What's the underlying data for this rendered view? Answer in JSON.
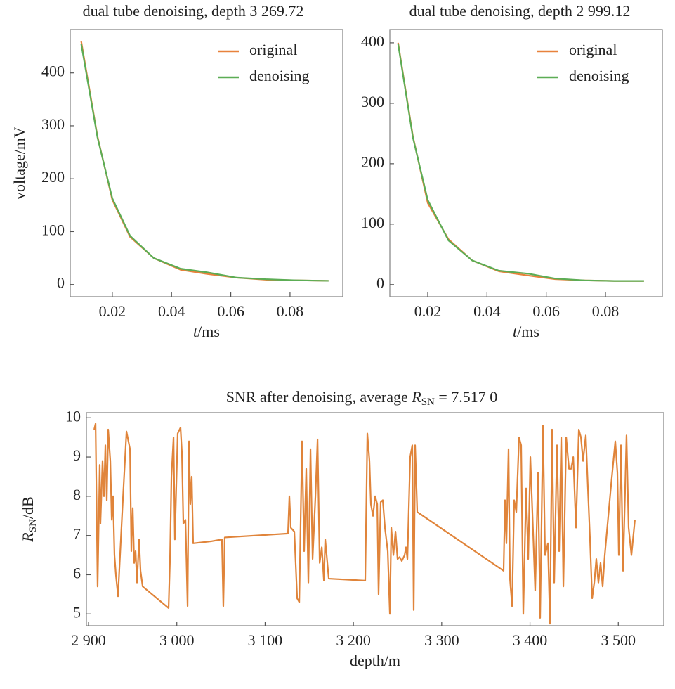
{
  "chart_data": [
    {
      "type": "line",
      "title": "dual tube denoising, depth 3 269.72",
      "xlabel": {
        "symbol": "t",
        "unit": "/ms"
      },
      "ylabel": "voltage/mV",
      "x": [
        0.0095,
        0.015,
        0.02,
        0.026,
        0.034,
        0.043,
        0.052,
        0.062,
        0.072,
        0.082,
        0.093
      ],
      "series": [
        {
          "name": "original",
          "color": "#e8823c",
          "values": [
            460,
            280,
            160,
            90,
            50,
            28,
            20,
            13,
            9,
            8,
            7
          ]
        },
        {
          "name": "denoising",
          "color": "#5cad55",
          "values": [
            455,
            278,
            163,
            92,
            50,
            30,
            23,
            13,
            10,
            8,
            7
          ]
        }
      ],
      "xlim": [
        0.0058,
        0.0978
      ],
      "xticks": [
        0.02,
        0.04,
        0.06,
        0.08
      ],
      "ylim": [
        -23,
        482
      ],
      "yticks": [
        0,
        100,
        200,
        300,
        400
      ],
      "legend": "upper right"
    },
    {
      "type": "line",
      "title": "dual tube denoising, depth 2 999.12",
      "xlabel": {
        "symbol": "t",
        "unit": "/ms"
      },
      "x": [
        0.01,
        0.015,
        0.02,
        0.027,
        0.035,
        0.044,
        0.054,
        0.063,
        0.073,
        0.083,
        0.093
      ],
      "series": [
        {
          "name": "original",
          "color": "#e8823c",
          "values": [
            400,
            245,
            135,
            75,
            40,
            22,
            15,
            9,
            7,
            6,
            6
          ]
        },
        {
          "name": "denoising",
          "color": "#5cad55",
          "values": [
            398,
            243,
            140,
            73,
            40,
            23,
            18,
            10,
            7,
            6,
            6
          ]
        }
      ],
      "xlim": [
        0.0072,
        0.0992
      ],
      "xticks": [
        0.02,
        0.04,
        0.06,
        0.08
      ],
      "ylim": [
        -20,
        422
      ],
      "yticks": [
        0,
        100,
        200,
        300,
        400
      ],
      "legend": "upper right"
    },
    {
      "type": "line",
      "title": {
        "text": "SNR after denoising, average ",
        "symbol": "R",
        "subscript": "SN",
        "unit": " = 7.517 0"
      },
      "xlabel": "depth/m",
      "ylabel": {
        "symbol": "R",
        "subscript": "SN",
        "unit": "/dB"
      },
      "x": [
        2906.4,
        2908,
        2910.3,
        2912.7,
        2913.5,
        2915.9,
        2917.5,
        2919.1,
        2920.7,
        2922.3,
        2924.7,
        2926.3,
        2927.8,
        2929.4,
        2931,
        2933.4,
        2938.2,
        2943,
        2947,
        2948.5,
        2950.1,
        2951.7,
        2953.3,
        2954.9,
        2957.3,
        2958.9,
        2961.3,
        2990.7,
        2992.3,
        2993.9,
        2996.3,
        2997.8,
        3001,
        3004.2,
        3005.8,
        3007.4,
        3009.8,
        3012.2,
        3013.8,
        3015.3,
        3016.9,
        3018.5,
        3038.4,
        3051.1,
        3052.7,
        3054.3,
        3125.9,
        3127.5,
        3129.1,
        3133.1,
        3136.3,
        3138.7,
        3141.8,
        3144.2,
        3146.6,
        3149,
        3151.4,
        3153.8,
        3157,
        3159.4,
        3161.8,
        3164.2,
        3166.6,
        3168.1,
        3172.1,
        3213.4,
        3215.8,
        3218.2,
        3219.8,
        3222.2,
        3224.6,
        3227,
        3228.5,
        3230.9,
        3233.3,
        3235.7,
        3238.9,
        3241.3,
        3242.9,
        3245.3,
        3247.7,
        3250,
        3252.4,
        3254.8,
        3258,
        3259.6,
        3261.2,
        3264.3,
        3266.7,
        3268.3,
        3269.9,
        3272.3,
        3370.1,
        3371.7,
        3373.3,
        3375.7,
        3377.3,
        3379.7,
        3382.1,
        3384.5,
        3387.6,
        3390,
        3392.4,
        3395.6,
        3398,
        3400.4,
        3402.7,
        3405.9,
        3409.1,
        3411.5,
        3414.7,
        3417.1,
        3420.3,
        3422.6,
        3425,
        3427.4,
        3430.6,
        3433,
        3435.4,
        3437.8,
        3441,
        3444.2,
        3446.6,
        3449,
        3452.1,
        3455.3,
        3457.7,
        3460.1,
        3463.2,
        3465.6,
        3468,
        3470.4,
        3472.8,
        3475.1,
        3477.5,
        3479.9,
        3482.3,
        3484.7,
        3491.9,
        3496.6,
        3499,
        3500.6,
        3503,
        3505.4,
        3509.3,
        3511.7,
        3514.9,
        3518.8
      ],
      "series": [
        {
          "color": "#e0843a",
          "values": [
            9.7,
            9.85,
            5.7,
            8.8,
            7.3,
            8.9,
            8.0,
            9.3,
            7.9,
            9.7,
            8.9,
            7.4,
            8.0,
            6.5,
            6.0,
            5.45,
            7.6,
            9.65,
            9.2,
            6.6,
            7.7,
            6.3,
            6.6,
            5.8,
            6.9,
            6.1,
            5.7,
            5.15,
            6.4,
            8.5,
            9.5,
            6.9,
            9.6,
            9.75,
            9.1,
            7.3,
            7.4,
            5.2,
            9.4,
            7.8,
            8.5,
            6.8,
            6.85,
            6.9,
            5.2,
            6.95,
            7.05,
            8.0,
            7.2,
            7.1,
            5.4,
            5.3,
            9.4,
            6.6,
            8.7,
            5.8,
            9.2,
            6.4,
            8.0,
            9.45,
            6.3,
            6.7,
            5.85,
            6.9,
            5.9,
            5.85,
            9.6,
            8.9,
            7.8,
            7.5,
            8.0,
            7.8,
            5.5,
            7.85,
            7.9,
            7.2,
            6.6,
            5.0,
            7.2,
            6.5,
            7.1,
            6.4,
            6.45,
            6.35,
            6.5,
            6.7,
            6.4,
            9.0,
            9.3,
            5.1,
            9.3,
            7.6,
            6.1,
            7.9,
            6.8,
            9.2,
            5.9,
            5.2,
            7.9,
            7.6,
            9.5,
            9.3,
            5.0,
            8.2,
            6.4,
            9.0,
            7.6,
            5.6,
            8.6,
            4.9,
            9.8,
            6.5,
            6.8,
            4.75,
            9.7,
            5.8,
            9.3,
            6.6,
            9.5,
            5.7,
            9.5,
            8.7,
            8.7,
            9.0,
            7.2,
            9.7,
            9.5,
            8.9,
            9.55,
            8.2,
            6.9,
            5.4,
            5.8,
            6.4,
            5.8,
            6.3,
            5.7,
            6.5,
            8.3,
            9.4,
            8.6,
            6.5,
            9.3,
            6.1,
            9.55,
            7.2,
            6.5,
            7.4
          ]
        }
      ],
      "xlim": [
        2897.6,
        3551.5
      ],
      "xticks": [
        {
          "value": 2900,
          "label": "2 900"
        },
        {
          "value": 3000,
          "label": "3 000"
        },
        {
          "value": 3100,
          "label": "3 100"
        },
        {
          "value": 3200,
          "label": "3 200"
        },
        {
          "value": 3300,
          "label": "3 300"
        },
        {
          "value": 3400,
          "label": "3 400"
        },
        {
          "value": 3500,
          "label": "3 500"
        }
      ],
      "ylim": [
        4.7,
        10.13
      ],
      "yticks": [
        5,
        6,
        7,
        8,
        9,
        10
      ]
    }
  ]
}
